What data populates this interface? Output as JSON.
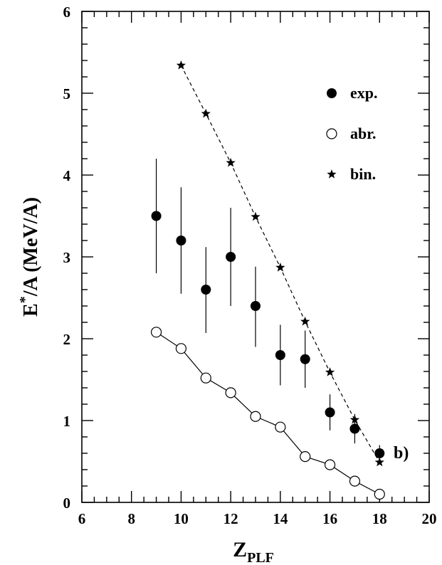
{
  "chart_data": {
    "type": "scatter",
    "xlim": [
      6,
      20
    ],
    "ylim": [
      0,
      6
    ],
    "x_ticks": [
      "6",
      "8",
      "10",
      "12",
      "14",
      "16",
      "18",
      "20"
    ],
    "y_ticks": [
      "0",
      "1",
      "2",
      "3",
      "4",
      "5",
      "6"
    ],
    "xlabel": {
      "main": "Z",
      "sub": "PLF"
    },
    "ylabel": {
      "main": "E",
      "sup": "*",
      "rest": "/A (MeV/A)"
    },
    "panel_label": "b)",
    "grid": false,
    "legend_position": "top-right",
    "series": [
      {
        "name": "exp.",
        "marker": "filled-circle",
        "line": "none",
        "x": [
          9,
          10,
          11,
          12,
          13,
          14,
          15,
          16,
          17,
          18
        ],
        "y": [
          3.5,
          3.2,
          2.6,
          3.0,
          2.4,
          1.8,
          1.75,
          1.1,
          0.9,
          0.6
        ],
        "err_low": [
          2.8,
          2.55,
          2.07,
          2.4,
          1.9,
          1.43,
          1.4,
          0.88,
          0.72,
          0.5
        ],
        "err_high": [
          4.2,
          3.85,
          3.12,
          3.6,
          2.88,
          2.17,
          2.1,
          1.32,
          1.08,
          0.7
        ]
      },
      {
        "name": "abr.",
        "marker": "open-circle",
        "line": "solid",
        "x": [
          9,
          10,
          11,
          12,
          13,
          14,
          15,
          16,
          17,
          18
        ],
        "y": [
          2.08,
          1.88,
          1.52,
          1.34,
          1.05,
          0.92,
          0.56,
          0.46,
          0.26,
          0.1
        ]
      },
      {
        "name": "bin.",
        "marker": "star",
        "line": "dashed",
        "x": [
          10,
          11,
          12,
          13,
          14,
          15,
          16,
          17,
          18
        ],
        "y": [
          5.34,
          4.75,
          4.15,
          3.49,
          2.87,
          2.21,
          1.59,
          1.01,
          0.49
        ]
      }
    ]
  }
}
